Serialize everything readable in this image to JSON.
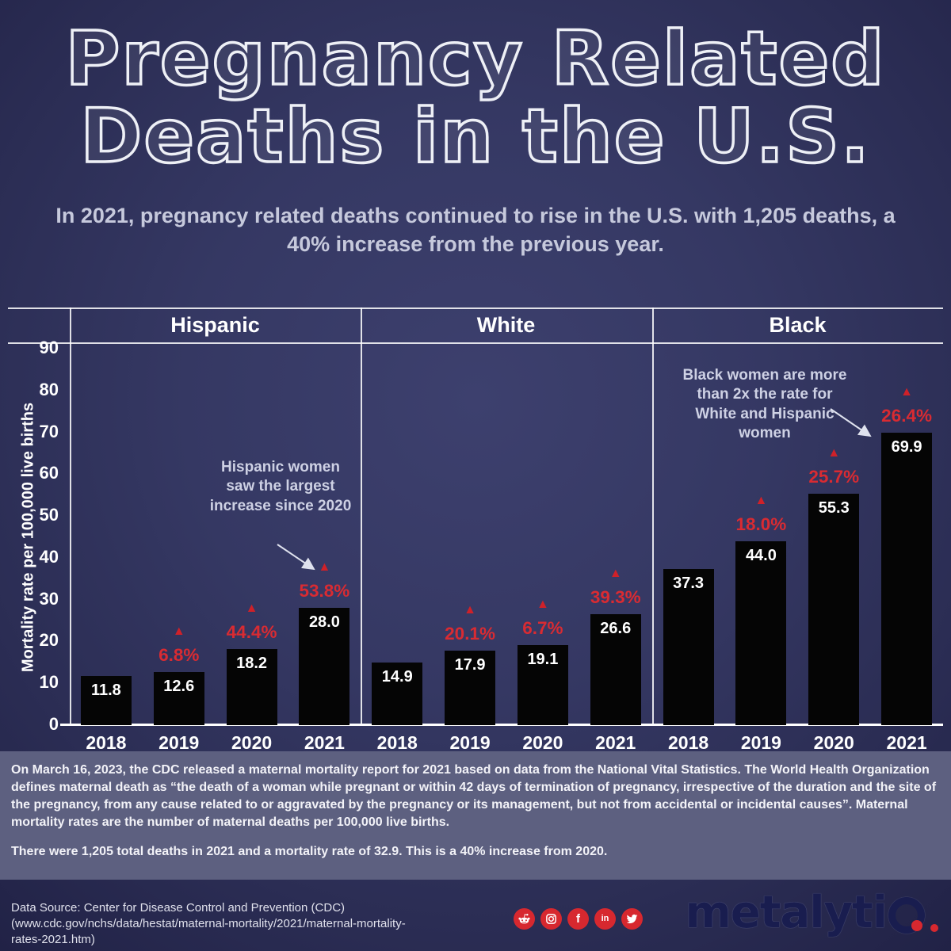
{
  "header": {
    "title_line1": "Pregnancy Related",
    "title_line2": "Deaths in the U.S.",
    "subtitle": "In 2021, pregnancy related deaths continued to rise in the U.S. with 1,205 deaths, a 40% increase from the previous year."
  },
  "chart_data": {
    "type": "bar",
    "title": "Pregnancy Related Deaths in the U.S.",
    "xlabel": "",
    "ylabel": "Mortality rate per 100,000 live births",
    "ylim": [
      0,
      90
    ],
    "yticks": [
      0,
      10,
      20,
      30,
      40,
      50,
      60,
      70,
      80,
      90
    ],
    "grid": "off",
    "legend": "none",
    "categories": [
      "2018",
      "2019",
      "2020",
      "2021"
    ],
    "groups": [
      {
        "name": "Hispanic",
        "values": [
          11.8,
          12.6,
          18.2,
          28.0
        ],
        "value_labels": [
          "11.8",
          "12.6",
          "18.2",
          "28.0"
        ],
        "pct_increase": [
          null,
          "6.8%",
          "44.4%",
          "53.8%"
        ]
      },
      {
        "name": "White",
        "values": [
          14.9,
          17.9,
          19.1,
          26.6
        ],
        "value_labels": [
          "14.9",
          "17.9",
          "19.1",
          "26.6"
        ],
        "pct_increase": [
          null,
          "20.1%",
          "6.7%",
          "39.3%"
        ]
      },
      {
        "name": "Black",
        "values": [
          37.3,
          44.0,
          55.3,
          69.9
        ],
        "value_labels": [
          "37.3",
          "44.0",
          "55.3",
          "69.9"
        ],
        "pct_increase": [
          null,
          "18.0%",
          "25.7%",
          "26.4%"
        ]
      }
    ],
    "bar_color": "#050505",
    "pct_color": "#d92b32",
    "annotations": [
      {
        "text": "Hispanic women saw the largest increase since 2020",
        "target": "Hispanic 2021 bar"
      },
      {
        "text": "Black women are more than 2x the rate for White and Hispanic women",
        "target": "Black 2021 bar"
      }
    ]
  },
  "footer": {
    "paragraph1": "On March 16, 2023, the CDC released a maternal mortality report for 2021 based on data from the National Vital Statistics. The World Health Organization defines maternal death as “the death of a woman while pregnant or within 42 days of termination of pregnancy, irrespective of the duration and the site of the pregnancy, from any cause related to or aggravated by the pregnancy or its management, but not from accidental or incidental causes”. Maternal mortality rates are the number of maternal deaths per 100,000 live births.",
    "paragraph2": "There were 1,205 total deaths in 2021 and a mortality rate of 32.9. This is a 40% increase from 2020."
  },
  "source": {
    "line1": "Data Source: Center for Disease Control and Prevention (CDC)",
    "line2": "(www.cdc.gov/nchs/data/hestat/maternal-mortality/2021/maternal-mortality-",
    "line3": "rates-2021.htm)"
  },
  "branding": {
    "logo_name": "metalytiq",
    "logo_text_prefix": "metalyti",
    "social": [
      "reddit",
      "instagram",
      "facebook",
      "linkedin",
      "twitter"
    ],
    "accent_red": "#d7282f",
    "logo_navy": "#191d4f"
  }
}
